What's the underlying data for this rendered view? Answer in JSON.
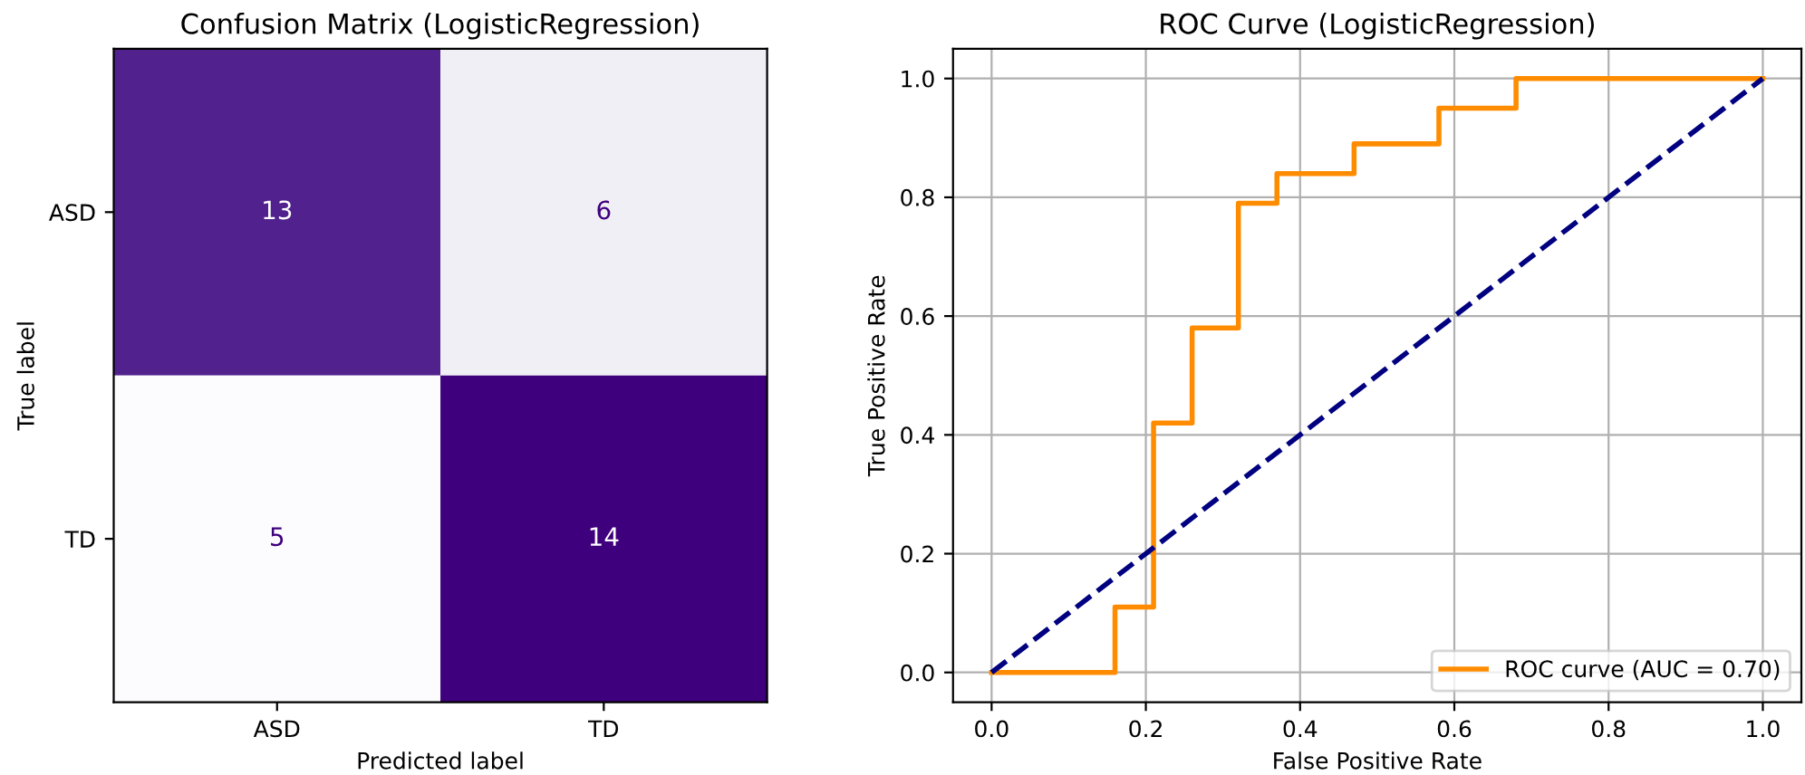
{
  "chart_data": [
    {
      "type": "heatmap",
      "title": "Confusion Matrix (LogisticRegression)",
      "xlabel": "Predicted label",
      "ylabel": "True label",
      "categories": [
        "ASD",
        "TD"
      ],
      "y_categories": [
        "ASD",
        "TD"
      ],
      "cells": [
        [
          13,
          6
        ],
        [
          5,
          14
        ]
      ],
      "data_labels": true
    },
    {
      "type": "line",
      "title": "ROC Curve (LogisticRegression)",
      "xlabel": "False Positive Rate",
      "ylabel": "True Positive Rate",
      "series": [
        {
          "name": "ROC curve (AUC = 0.70)",
          "color": "#ff8c00",
          "line_style": "solid",
          "x": [
            0,
            0.16,
            0.16,
            0.21,
            0.21,
            0.26,
            0.26,
            0.32,
            0.32,
            0.37,
            0.37,
            0.47,
            0.47,
            0.58,
            0.58,
            0.68,
            0.68,
            1
          ],
          "values": [
            0,
            0,
            0.11,
            0.11,
            0.42,
            0.42,
            0.58,
            0.58,
            0.79,
            0.79,
            0.84,
            0.84,
            0.89,
            0.89,
            0.95,
            0.95,
            1,
            1
          ]
        },
        {
          "color": "#000080",
          "line_style": "dashed",
          "x": [
            0,
            1
          ],
          "values": [
            0,
            1
          ]
        }
      ],
      "xlim": [
        -0.05,
        1.05
      ],
      "ylim": [
        -0.05,
        1.05
      ],
      "xticks": [
        {
          "value": 0,
          "label": "0.0"
        },
        0.2,
        0.4,
        0.6,
        0.8,
        {
          "value": 1,
          "label": "1.0"
        }
      ],
      "yticks": [
        {
          "value": 0,
          "label": "0.0"
        },
        0.2,
        0.4,
        0.6,
        0.8,
        {
          "value": 1,
          "label": "1.0"
        }
      ],
      "grid": true,
      "legend": "bottom right"
    }
  ]
}
